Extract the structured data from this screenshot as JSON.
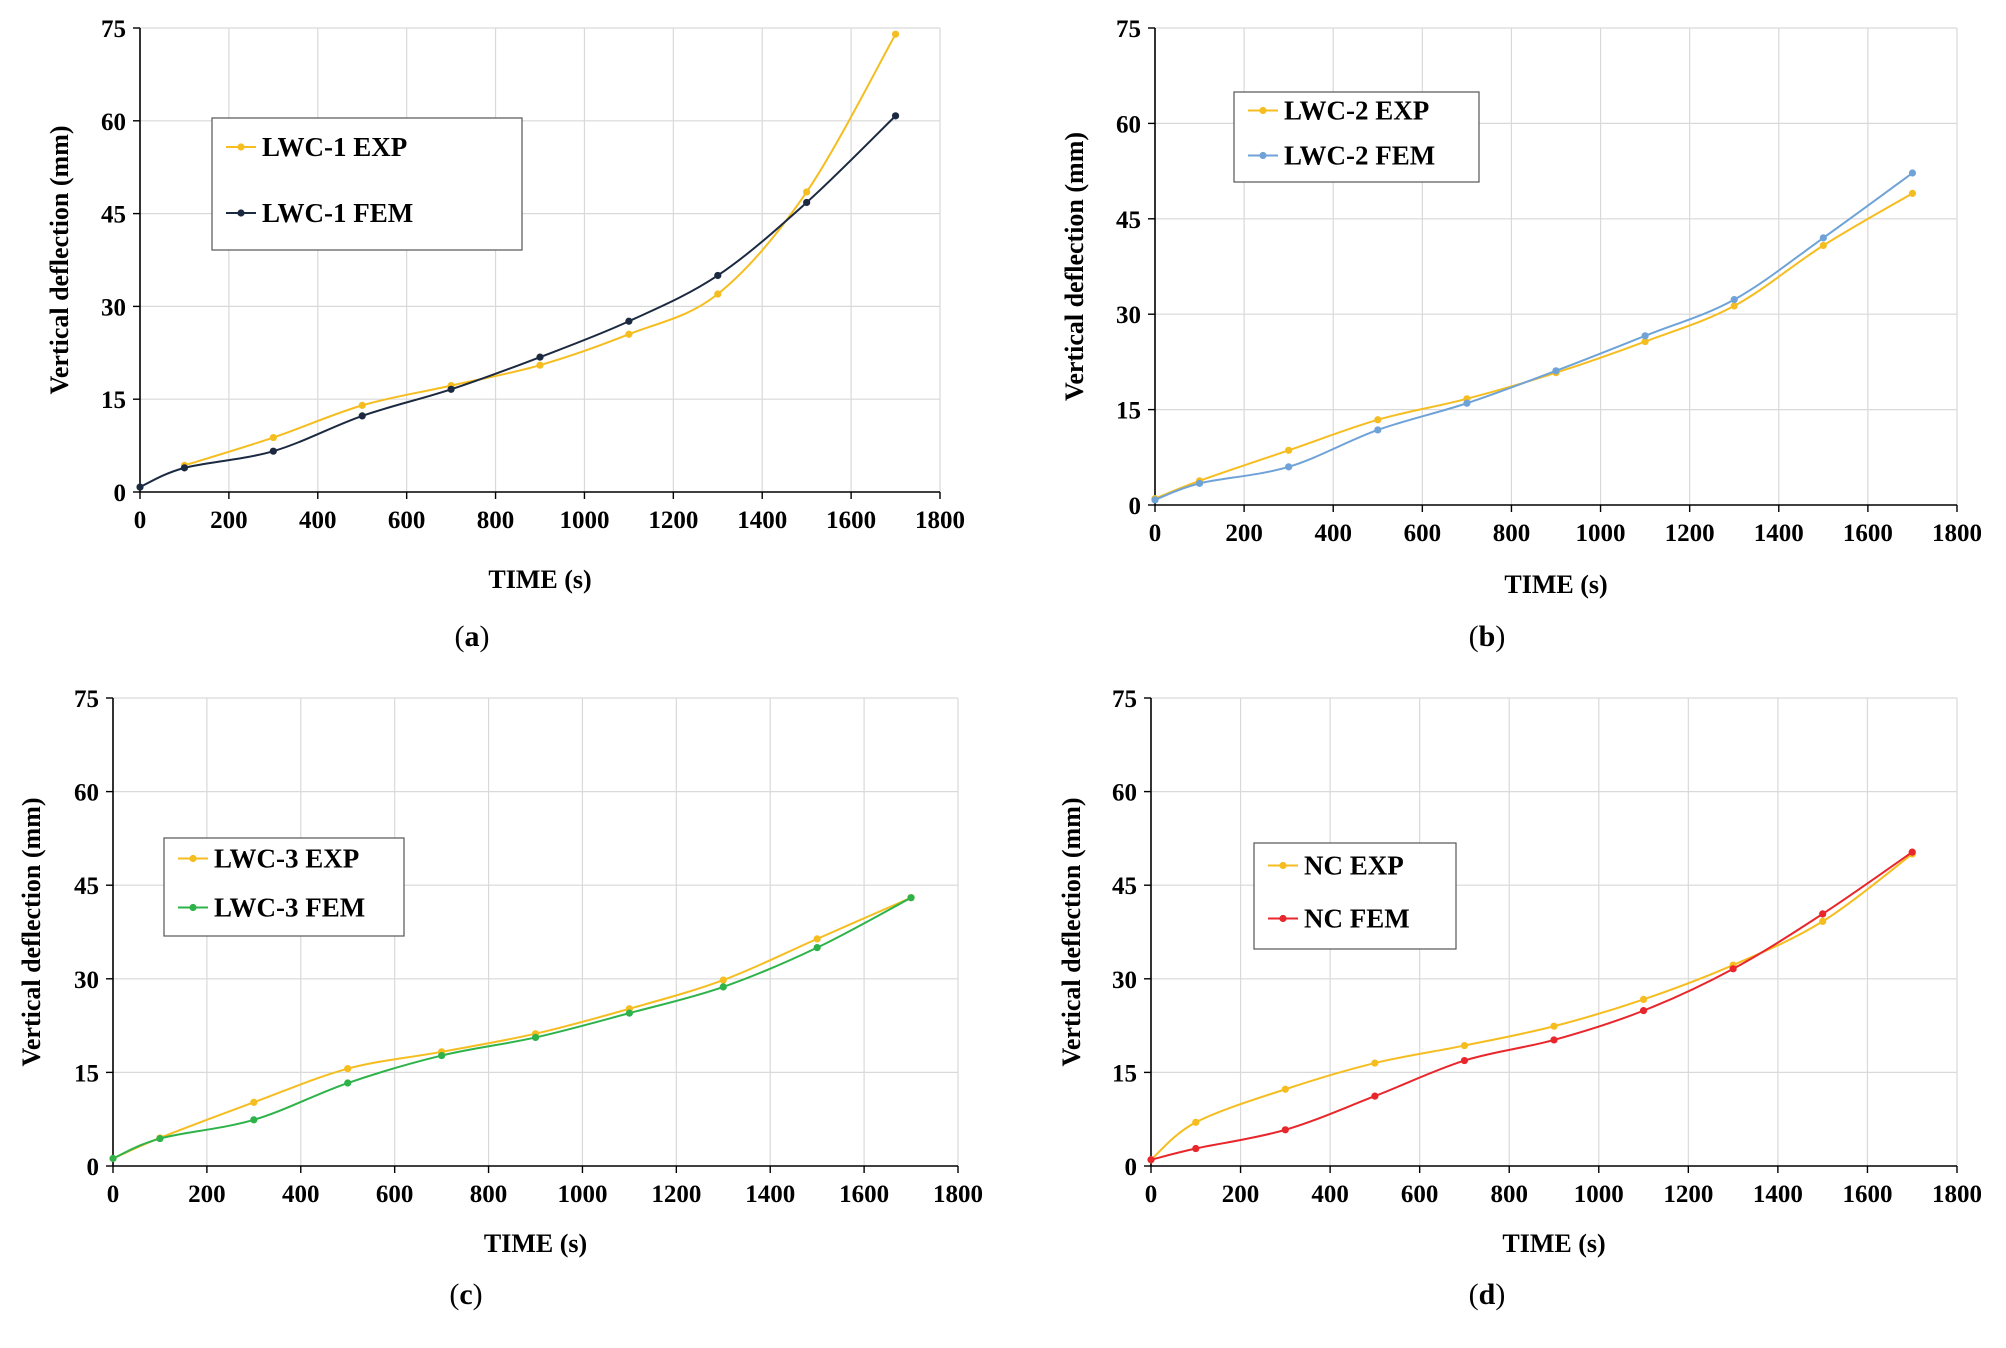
{
  "chart_data": [
    {
      "type": "line",
      "caption": "a",
      "xlabel": "TIME (s)",
      "ylabel": "Vertical deflection (mm)",
      "xlim": [
        0,
        1800
      ],
      "ylim": [
        0,
        75
      ],
      "xticks": [
        "0",
        "200",
        "400",
        "600",
        "800",
        "1000",
        "1200",
        "1400",
        "1600",
        "1800"
      ],
      "yticks": [
        "0",
        "15",
        "30",
        "45",
        "60",
        "75"
      ],
      "grid": true,
      "legend": "upper-left",
      "series": [
        {
          "name": "LWC-1 EXP",
          "color": "#f5bd1f",
          "x": [
            100,
            300,
            500,
            700,
            900,
            1100,
            1300,
            1500,
            1700
          ],
          "y": [
            4.3,
            8.8,
            14.0,
            17.2,
            20.5,
            25.5,
            32.0,
            48.5,
            74.0
          ]
        },
        {
          "name": "LWC-1 FEM",
          "color": "#1b2a41",
          "x": [
            0,
            100,
            300,
            500,
            700,
            900,
            1100,
            1300,
            1500,
            1700
          ],
          "y": [
            0.8,
            3.9,
            6.6,
            12.3,
            16.6,
            21.8,
            27.6,
            35.0,
            46.8,
            60.8
          ]
        }
      ]
    },
    {
      "type": "line",
      "caption": "b",
      "xlabel": "TIME (s)",
      "ylabel": "Vertical deflection (mm)",
      "xlim": [
        0,
        1800
      ],
      "ylim": [
        0,
        75
      ],
      "xticks": [
        "0",
        "200",
        "400",
        "600",
        "800",
        "1000",
        "1200",
        "1400",
        "1600",
        "1800"
      ],
      "yticks": [
        "0",
        "15",
        "30",
        "45",
        "60",
        "75"
      ],
      "grid": true,
      "legend": "upper-left",
      "series": [
        {
          "name": "LWC-2 EXP",
          "color": "#f5bd1f",
          "x": [
            0,
            100,
            300,
            500,
            700,
            900,
            1100,
            1300,
            1500,
            1700
          ],
          "y": [
            1.0,
            3.8,
            8.6,
            13.4,
            16.7,
            20.8,
            25.7,
            31.3,
            40.8,
            49.0
          ]
        },
        {
          "name": "LWC-2 FEM",
          "color": "#6fa3d8",
          "x": [
            0,
            100,
            300,
            500,
            700,
            900,
            1100,
            1300,
            1500,
            1700
          ],
          "y": [
            0.8,
            3.4,
            6.0,
            11.8,
            16.0,
            21.1,
            26.6,
            32.3,
            42.0,
            52.2
          ]
        }
      ]
    },
    {
      "type": "line",
      "caption": "c",
      "xlabel": "TIME (s)",
      "ylabel": "Vertical deflection (mm)",
      "xlim": [
        0,
        1800
      ],
      "ylim": [
        0,
        75
      ],
      "xticks": [
        "0",
        "200",
        "400",
        "600",
        "800",
        "1000",
        "1200",
        "1400",
        "1600",
        "1800"
      ],
      "yticks": [
        "0",
        "15",
        "30",
        "45",
        "60",
        "75"
      ],
      "grid": true,
      "legend": "center-left",
      "series": [
        {
          "name": "LWC-3 EXP",
          "color": "#f5bd1f",
          "x": [
            0,
            100,
            300,
            500,
            700,
            900,
            1100,
            1300,
            1500,
            1700
          ],
          "y": [
            1.2,
            4.5,
            10.2,
            15.6,
            18.3,
            21.2,
            25.2,
            29.8,
            36.4,
            43.0
          ]
        },
        {
          "name": "LWC-3 FEM",
          "color": "#2db34a",
          "x": [
            0,
            100,
            300,
            500,
            700,
            900,
            1100,
            1300,
            1500,
            1700
          ],
          "y": [
            1.2,
            4.4,
            7.4,
            13.3,
            17.7,
            20.6,
            24.5,
            28.7,
            35.0,
            43.0
          ]
        }
      ]
    },
    {
      "type": "line",
      "caption": "d",
      "xlabel": "TIME (s)",
      "ylabel": "Vertical deflection (mm)",
      "xlim": [
        0,
        1800
      ],
      "ylim": [
        0,
        75
      ],
      "xticks": [
        "0",
        "200",
        "400",
        "600",
        "800",
        "1000",
        "1200",
        "1400",
        "1600",
        "1800"
      ],
      "yticks": [
        "0",
        "15",
        "30",
        "45",
        "60",
        "75"
      ],
      "grid": true,
      "legend": "center-left",
      "series": [
        {
          "name": "NC EXP",
          "color": "#f5bd1f",
          "x": [
            0,
            100,
            300,
            500,
            700,
            900,
            1100,
            1300,
            1500,
            1700
          ],
          "y": [
            1.0,
            7.0,
            12.3,
            16.5,
            19.3,
            22.4,
            26.7,
            32.2,
            39.2,
            50.0
          ]
        },
        {
          "name": "NC FEM",
          "color": "#e8262b",
          "x": [
            0,
            100,
            300,
            500,
            700,
            900,
            1100,
            1300,
            1500,
            1700
          ],
          "y": [
            1.0,
            2.8,
            5.8,
            11.2,
            16.9,
            20.2,
            24.9,
            31.6,
            40.4,
            50.3
          ]
        }
      ]
    }
  ]
}
